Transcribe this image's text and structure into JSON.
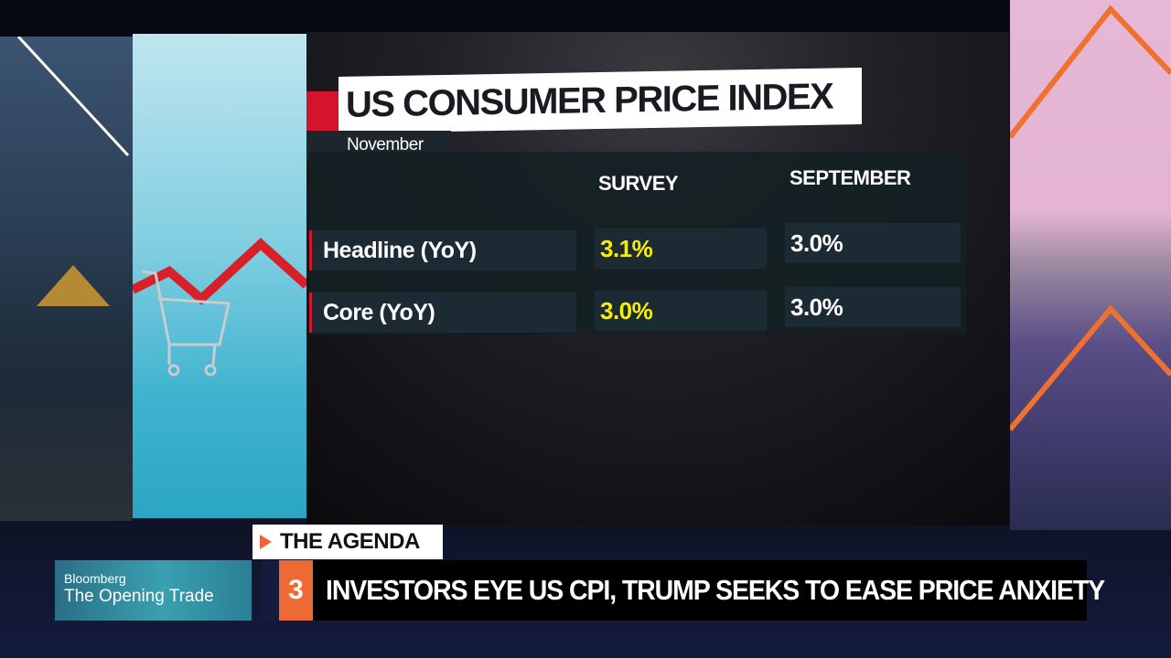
{
  "graphic": {
    "title": "US CONSUMER PRICE INDEX",
    "subtitle": "November",
    "columns": [
      "SURVEY",
      "SEPTEMBER"
    ],
    "rows": [
      {
        "label": "Headline (YoY)",
        "survey": "3.1%",
        "previous": "3.0%"
      },
      {
        "label": "Core (YoY)",
        "survey": "3.0%",
        "previous": "3.0%"
      }
    ]
  },
  "lower_third": {
    "segment": "THE AGENDA",
    "brand": "Bloomberg",
    "show": "The Opening Trade",
    "item_number": "3",
    "headline": "INVESTORS EYE US CPI, TRUMP SEEKS TO EASE PRICE ANXIETY"
  },
  "colors": {
    "accent_red": "#d4142a",
    "survey_yellow": "#f6f000",
    "agenda_orange": "#ee6a35"
  }
}
